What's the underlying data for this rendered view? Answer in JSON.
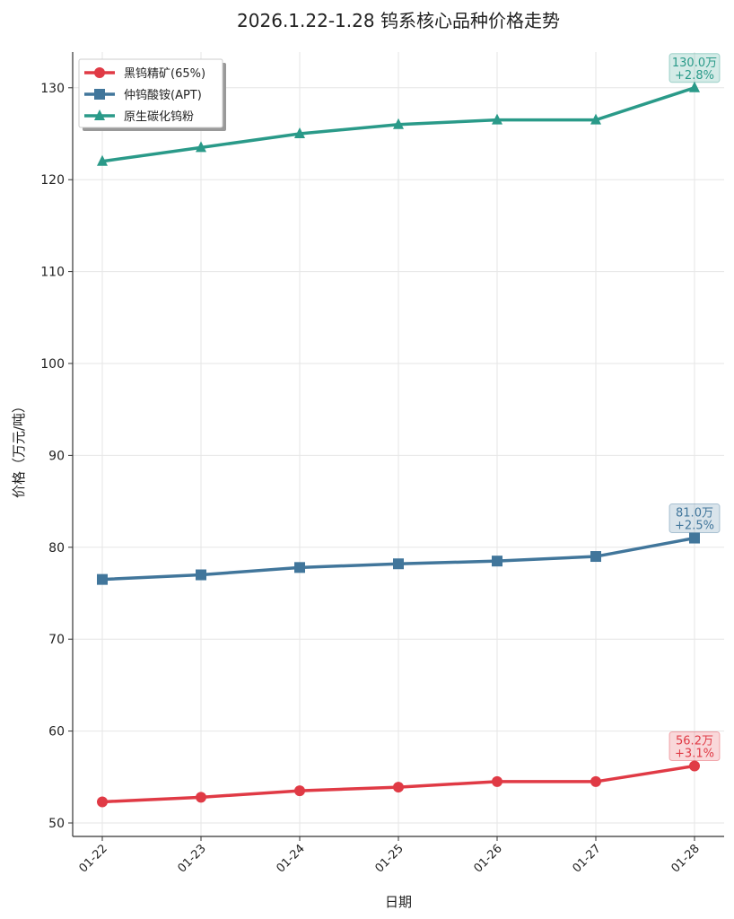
{
  "chart_data": {
    "type": "line",
    "title": "2026.1.22-1.28 钨系核心品种价格走势",
    "xlabel": "日期",
    "ylabel": "价格（万元/吨）",
    "categories": [
      "01-22",
      "01-23",
      "01-24",
      "01-25",
      "01-26",
      "01-27",
      "01-28"
    ],
    "ylim": [
      48.5,
      134
    ],
    "yticks": [
      50,
      60,
      70,
      80,
      90,
      100,
      110,
      120,
      130
    ],
    "grid": true,
    "legend_position": "top-left",
    "series": [
      {
        "name": "黑钨精矿(65%)",
        "color": "#e03a45",
        "marker": "circle",
        "values": [
          52.3,
          52.8,
          53.5,
          53.9,
          54.5,
          54.5,
          56.2
        ],
        "annotation": [
          "56.2万",
          "+3.1%"
        ]
      },
      {
        "name": "仲钨酸铵(APT)",
        "color": "#41769b",
        "marker": "square",
        "values": [
          76.5,
          77.0,
          77.8,
          78.2,
          78.5,
          79.0,
          81.0
        ],
        "annotation": [
          "81.0万",
          "+2.5%"
        ]
      },
      {
        "name": "原生碳化钨粉",
        "color": "#2a9a89",
        "marker": "triangle",
        "values": [
          122.0,
          123.5,
          125.0,
          126.0,
          126.5,
          126.5,
          130.0
        ],
        "annotation": [
          "130.0万",
          "+2.8%"
        ]
      }
    ]
  }
}
